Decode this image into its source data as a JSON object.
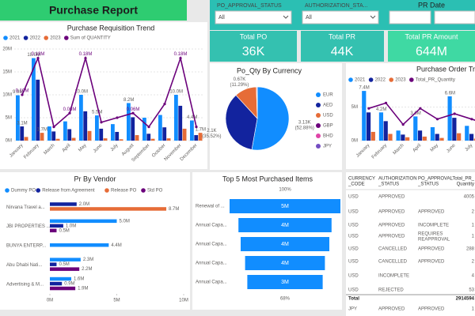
{
  "header": {
    "title": "Purchase Report"
  },
  "filters": [
    {
      "label": "PO_APPROVAL_STATUS",
      "value": "All"
    },
    {
      "label": "AUTHORIZATION_STA...",
      "value": "All"
    },
    {
      "label": "PR Date"
    }
  ],
  "cards": [
    {
      "label": "Total PO",
      "value": "36K"
    },
    {
      "label": "Total PR",
      "value": "44K"
    },
    {
      "label": "Total PR Amount",
      "value": "644M"
    }
  ],
  "chart_data": [
    {
      "type": "combo",
      "title": "Purchase Requisition Trend",
      "categories": [
        "January",
        "February",
        "March",
        "April",
        "May",
        "June",
        "July",
        "August",
        "September",
        "October",
        "November",
        "December"
      ],
      "series": [
        {
          "name": "2021",
          "color": "#118dff",
          "values": [
            9.9,
            18.0,
            3.1,
            4.2,
            10.0,
            5.5,
            3.6,
            8.2,
            5.0,
            5.6,
            10.0,
            4.4
          ],
          "value_labels": [
            "9.9M",
            "18.0M",
            null,
            null,
            "10.0M",
            "5.5M",
            null,
            "8.2M",
            null,
            null,
            "10.0M",
            "4.4M"
          ]
        },
        {
          "name": "2022",
          "color": "#12239e",
          "values": [
            3.1,
            13.3,
            2.0,
            2.5,
            6.4,
            2.6,
            1.9,
            5.1,
            1.5,
            2.9,
            7.6,
            1.2
          ],
          "value_labels": [
            "3.1M",
            null,
            null,
            null,
            null,
            null,
            null,
            null,
            null,
            null,
            null,
            null
          ]
        },
        {
          "name": "2023",
          "color": "#e66c37",
          "values": [
            0.8,
            1.7,
            0.4,
            0.6,
            2.1,
            0.5,
            0.3,
            1.2,
            0.4,
            0.5,
            2.6,
            1.7
          ],
          "value_labels": [
            null,
            "1.7M",
            null,
            null,
            null,
            null,
            null,
            null,
            null,
            null,
            null,
            "1.7M"
          ]
        },
        {
          "name": "Sum of QUANTITY",
          "color": "#6b007b",
          "axis": "y2",
          "values": [
            0.1,
            0.18,
            0.03,
            0.06,
            0.18,
            0.04,
            0.05,
            0.06,
            0.03,
            0.08,
            0.18,
            0.03
          ],
          "value_labels": [
            "0.10M",
            "0.18M",
            null,
            "0.06M",
            "0.18M",
            null,
            null,
            "0.06M",
            null,
            null,
            "0.18M",
            null
          ]
        }
      ],
      "ylim": [
        0,
        20
      ],
      "yticks": [
        {
          "value": 0,
          "label": "0M"
        },
        {
          "value": 5,
          "label": "5M"
        },
        {
          "value": 10,
          "label": "10M"
        },
        {
          "value": 15,
          "label": "15M"
        },
        {
          "value": 20,
          "label": "20M"
        }
      ],
      "y2lim": [
        0,
        0.2
      ]
    },
    {
      "type": "pie",
      "title": "Po_Qty By Currency",
      "categories": [
        "EUR",
        "AED",
        "USD",
        "GBP",
        "BHD",
        "JPY"
      ],
      "colors": [
        "#118dff",
        "#12239e",
        "#e66c37",
        "#6b007b",
        "#e044a7",
        "#744ec2"
      ],
      "values": [
        3130,
        2100,
        670,
        20,
        6,
        3
      ],
      "value_labels": [
        "3.13K (52.88%)",
        "2.1K (35.52%)",
        "0.67K (11.29%)",
        null,
        null,
        null
      ]
    },
    {
      "type": "combo",
      "title": "Purchase Order Tr",
      "categories": [
        "January",
        "February",
        "March",
        "April",
        "May",
        "June",
        "July",
        "August",
        "September"
      ],
      "series": [
        {
          "name": "2021",
          "color": "#118dff",
          "values": [
            7.4,
            4.2,
            1.5,
            3.6,
            2.0,
            6.6,
            2.2,
            1.6,
            0.8
          ],
          "value_labels": [
            "7.4M",
            "4.2M",
            null,
            "3.6M",
            null,
            "6.6M",
            null,
            null,
            null
          ]
        },
        {
          "name": "2022",
          "color": "#12239e",
          "values": [
            4.2,
            2.9,
            0.9,
            1.5,
            1.0,
            3.4,
            1.0,
            0.7,
            0.4
          ]
        },
        {
          "name": "2023",
          "color": "#e66c37",
          "values": [
            1.3,
            1.0,
            0.5,
            0.6,
            0.4,
            1.1,
            0.3,
            0.3,
            0.2
          ]
        },
        {
          "name": "Total_PR_Quantity",
          "color": "#6b007b",
          "axis": "y2",
          "values": [
            0.3,
            0.35,
            0.15,
            0.3,
            0.2,
            0.25,
            0.2,
            0.15,
            0.1
          ]
        }
      ],
      "ylim": [
        0,
        8
      ],
      "yticks": [
        {
          "value": 0,
          "label": "0M"
        },
        {
          "value": 5,
          "label": "5M"
        }
      ],
      "y2lim": [
        0,
        0.5
      ]
    },
    {
      "type": "hbar",
      "title": "Pr By Vendor",
      "categories": [
        "Nirvana Travel a...",
        "JBI PROPERTIES ...",
        "BUNYA ENTERP...",
        "Abu Dhabi Nati...",
        "Advertising & M..."
      ],
      "series": [
        {
          "name": "Dummy PO",
          "color": "#118dff",
          "values": [
            null,
            5.0,
            4.4,
            2.3,
            1.6
          ],
          "value_labels": [
            null,
            "5.0M",
            "4.4M",
            "2.3M",
            "1.6M"
          ]
        },
        {
          "name": "Release from Agreement",
          "color": "#12239e",
          "values": [
            2.0,
            1.0,
            null,
            0.5,
            0.9
          ],
          "value_labels": [
            "2.0M",
            "1.0M",
            null,
            "0.5M",
            "0.9M"
          ]
        },
        {
          "name": "Release PO",
          "color": "#e66c37",
          "values": [
            8.7,
            null,
            null,
            null,
            null
          ],
          "value_labels": [
            "8.7M",
            null,
            null,
            null,
            null
          ]
        },
        {
          "name": "Std PO",
          "color": "#6b007b",
          "values": [
            null,
            0.5,
            null,
            2.2,
            1.9
          ],
          "value_labels": [
            null,
            "0.5M",
            null,
            "2.2M",
            "1.9M"
          ]
        }
      ],
      "xlim": [
        0,
        10
      ],
      "xticks": [
        {
          "value": 0,
          "label": "0M"
        },
        {
          "value": 5,
          "label": "5M"
        },
        {
          "value": 10,
          "label": "10M"
        }
      ]
    },
    {
      "type": "funnel",
      "title": "Top 5 Most Purchased Items",
      "categories": [
        "Renewal of ...",
        "Annual Capa...",
        "Annual Capa...",
        "Annual Capa...",
        "Annual Capa..."
      ],
      "values": [
        5.0,
        4.2,
        4.0,
        3.6,
        3.4
      ],
      "value_labels": [
        "5M",
        "4M",
        "4M",
        "4M",
        "3M"
      ],
      "color": "#118dff",
      "top_label": "100%",
      "bottom_label": "68%"
    }
  ],
  "table": {
    "columns": [
      [
        "CURRENCY",
        "_CODE"
      ],
      [
        "AUTHORIZATION",
        "_STATUS"
      ],
      [
        "PO_APPROVAL",
        "_STATUS"
      ],
      [
        "Total_PR_",
        "Quantity"
      ]
    ],
    "rows": [
      [
        "USD",
        "APPROVED",
        null,
        "4005"
      ],
      [
        "USD",
        "APPROVED",
        "APPROVED",
        "2"
      ],
      [
        "USD",
        "APPROVED",
        "INCOMPLETE",
        "1"
      ],
      [
        "USD",
        "APPROVED",
        [
          "REQUIRES",
          "REAPPROVAL"
        ],
        "1"
      ],
      [
        "USD",
        "CANCELLED",
        "APPROVED",
        "288"
      ],
      [
        "USD",
        "CANCELLED",
        "APPROVED",
        "2"
      ],
      [
        "USD",
        "INCOMPLETE",
        null,
        "4"
      ],
      [
        "USD",
        "REJECTED",
        null,
        "53"
      ],
      [
        "Total",
        null,
        null,
        "2914594"
      ],
      [
        "JPY",
        "APPROVED",
        "APPROVED",
        "1"
      ]
    ]
  }
}
